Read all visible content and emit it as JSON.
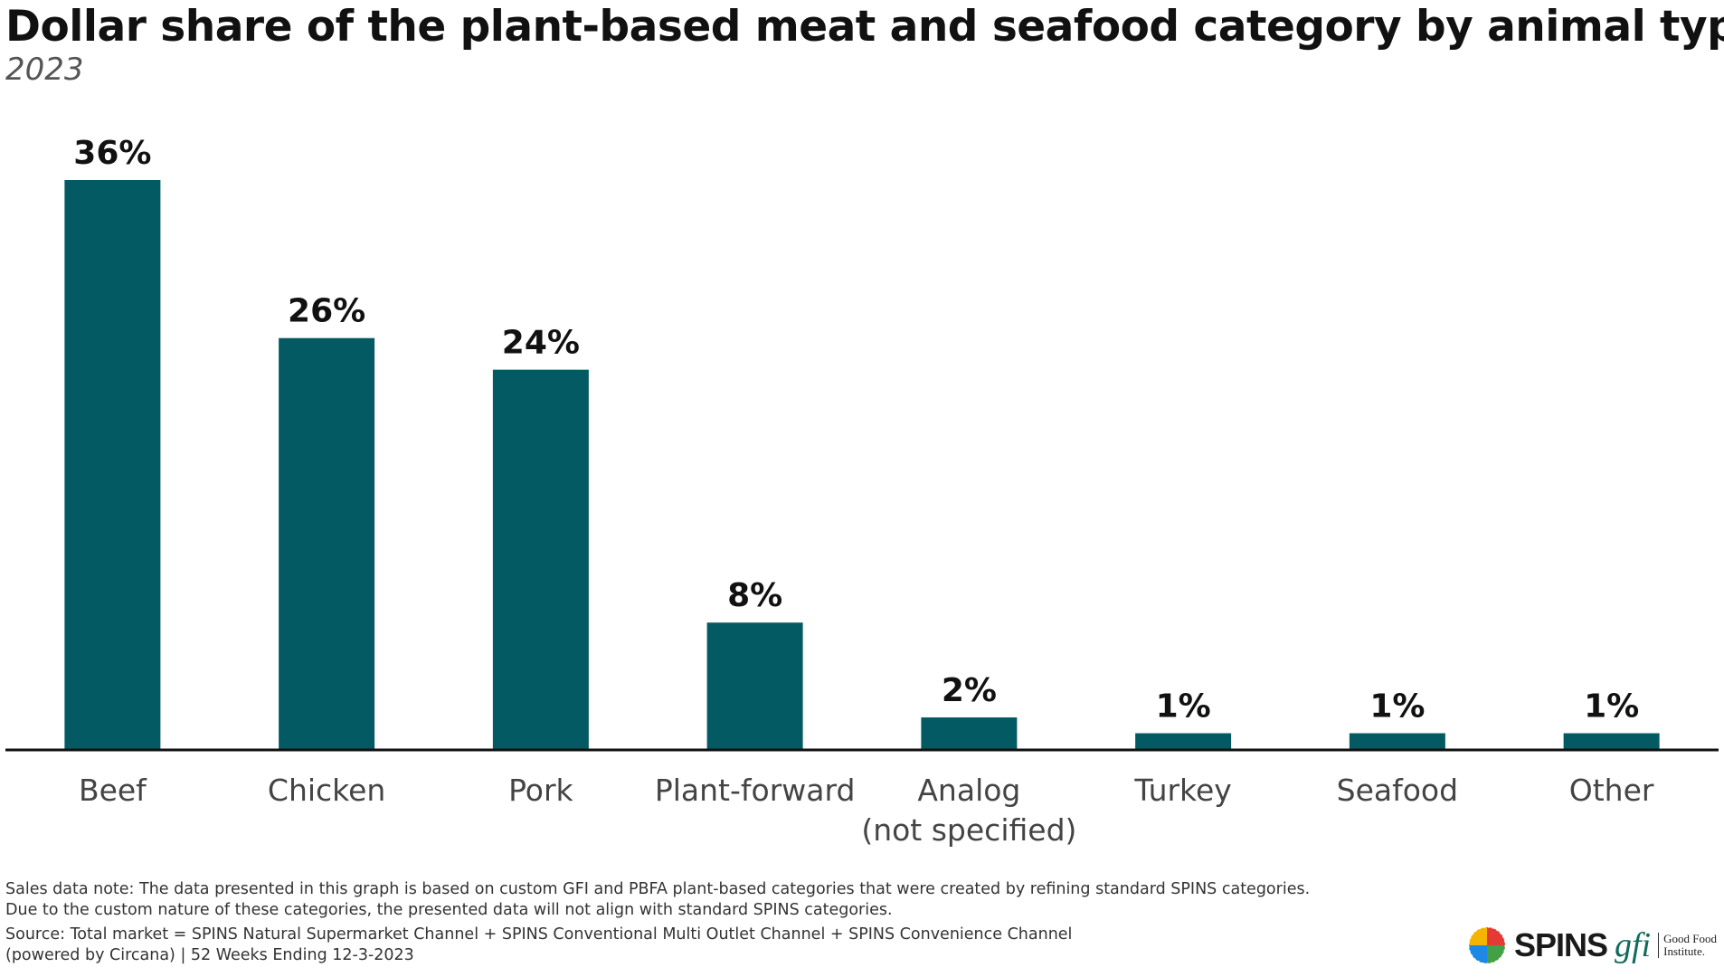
{
  "title": "Dollar share of the plant-based meat and seafood category by animal type",
  "subtitle": "2023",
  "colors": {
    "bar": "#045a63",
    "axis": "#111111",
    "label": "#444444"
  },
  "chart_data": {
    "type": "bar",
    "title": "Dollar share of the plant-based meat and seafood category by animal type",
    "subtitle": "2023",
    "categories": [
      "Beef",
      "Chicken",
      "Pork",
      "Plant-forward",
      "Analog (not specified)",
      "Turkey",
      "Seafood",
      "Other"
    ],
    "category_lines": [
      [
        "Beef"
      ],
      [
        "Chicken"
      ],
      [
        "Pork"
      ],
      [
        "Plant-forward"
      ],
      [
        "Analog",
        "(not specified)"
      ],
      [
        "Turkey"
      ],
      [
        "Seafood"
      ],
      [
        "Other"
      ]
    ],
    "values": [
      36,
      26,
      24,
      8,
      2,
      1,
      1,
      1
    ],
    "value_labels": [
      "36%",
      "26%",
      "24%",
      "8%",
      "2%",
      "1%",
      "1%",
      "1%"
    ],
    "ylim": [
      0,
      36
    ],
    "grid": false
  },
  "notes": {
    "sales_note_1": "Sales data note: The data presented in this graph is based on custom GFI and PBFA plant-based categories that were created by refining standard SPINS categories.",
    "sales_note_2": "Due to the custom nature of these categories, the presented data will not align with standard SPINS categories.",
    "source_1": "Source: Total market = SPINS Natural Supermarket Channel + SPINS Conventional Multi Outlet Channel + SPINS Convenience Channel",
    "source_2": "(powered by Circana) | 52 Weeks Ending 12-3-2023"
  },
  "logos": {
    "spins": "SPINS",
    "gfi": "gfi",
    "gfi_line1": "Good Food",
    "gfi_line2": "Institute."
  }
}
